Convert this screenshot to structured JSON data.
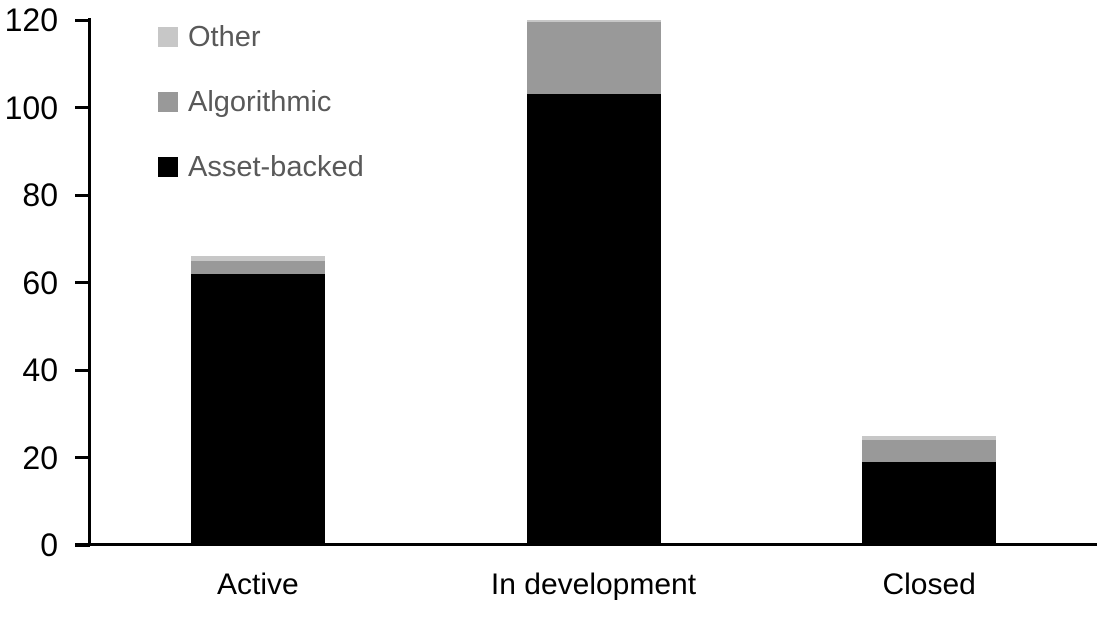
{
  "chart_data": {
    "type": "bar",
    "stacked": true,
    "title": "",
    "xlabel": "",
    "ylabel": "",
    "categories": [
      "Active",
      "In development",
      "Closed"
    ],
    "series": [
      {
        "name": "Asset-backed",
        "color": "#000000",
        "values": [
          62,
          103,
          19
        ]
      },
      {
        "name": "Algorithmic",
        "color": "#999999",
        "values": [
          3,
          16.5,
          5
        ]
      },
      {
        "name": "Other",
        "color": "#c7c7c7",
        "values": [
          1,
          0.5,
          1
        ]
      }
    ],
    "totals": [
      66,
      120,
      25
    ],
    "ylim": [
      0,
      120
    ],
    "yticks": [
      0,
      20,
      40,
      60,
      80,
      100,
      120
    ],
    "ytick_interval": 20,
    "grid": false,
    "axis_color": "#000000",
    "background_color": "#ffffff",
    "legend": {
      "position": "top-left-inside",
      "text_color": "#595959",
      "entries": [
        "Other",
        "Algorithmic",
        "Asset-backed"
      ]
    }
  }
}
